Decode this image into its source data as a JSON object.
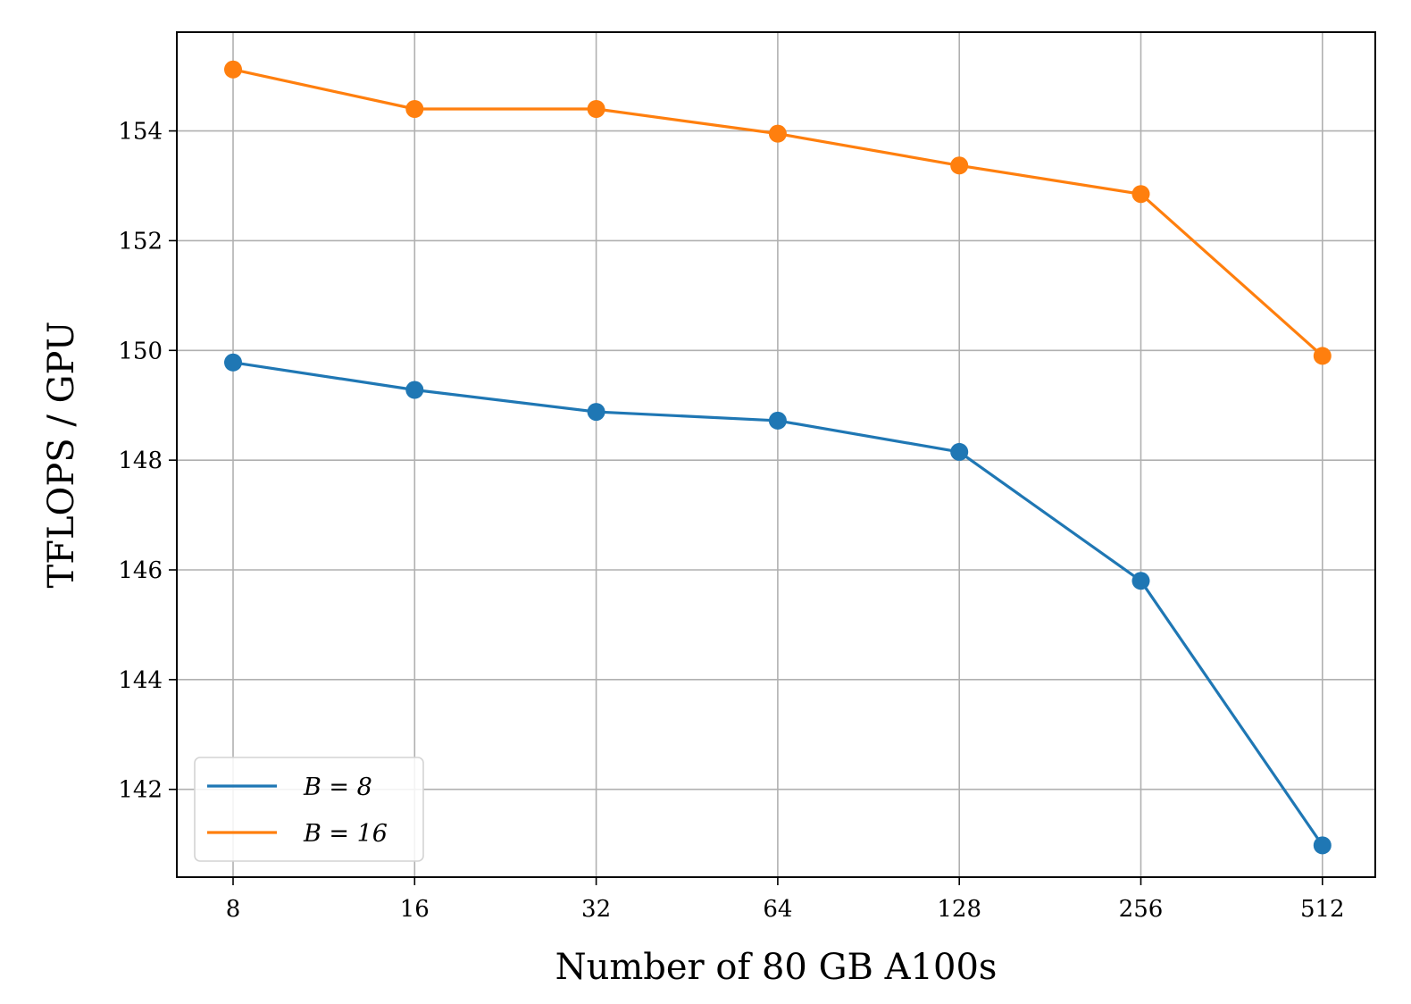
{
  "chart_data": {
    "type": "line",
    "title": "",
    "xlabel": "Number of 80 GB A100s",
    "ylabel": "TFLOPS / GPU",
    "x_scale": "log2",
    "categories": [
      "8",
      "16",
      "32",
      "64",
      "128",
      "256",
      "512"
    ],
    "x": [
      8,
      16,
      32,
      64,
      128,
      256,
      512
    ],
    "ylim": [
      140.4,
      155.8
    ],
    "yticks": [
      142,
      144,
      146,
      148,
      150,
      152,
      154
    ],
    "ytick_labels": [
      "142",
      "144",
      "146",
      "148",
      "150",
      "152",
      "154"
    ],
    "grid": true,
    "legend_position": "lower-left",
    "series": [
      {
        "name": "B = 8",
        "color": "#1f77b4",
        "marker": "circle",
        "values": [
          149.78,
          149.28,
          148.88,
          148.72,
          148.15,
          145.8,
          140.98
        ]
      },
      {
        "name": "B = 16",
        "color": "#ff7f0e",
        "marker": "circle",
        "values": [
          155.12,
          154.4,
          154.4,
          153.95,
          153.37,
          152.85,
          149.9
        ]
      }
    ]
  }
}
